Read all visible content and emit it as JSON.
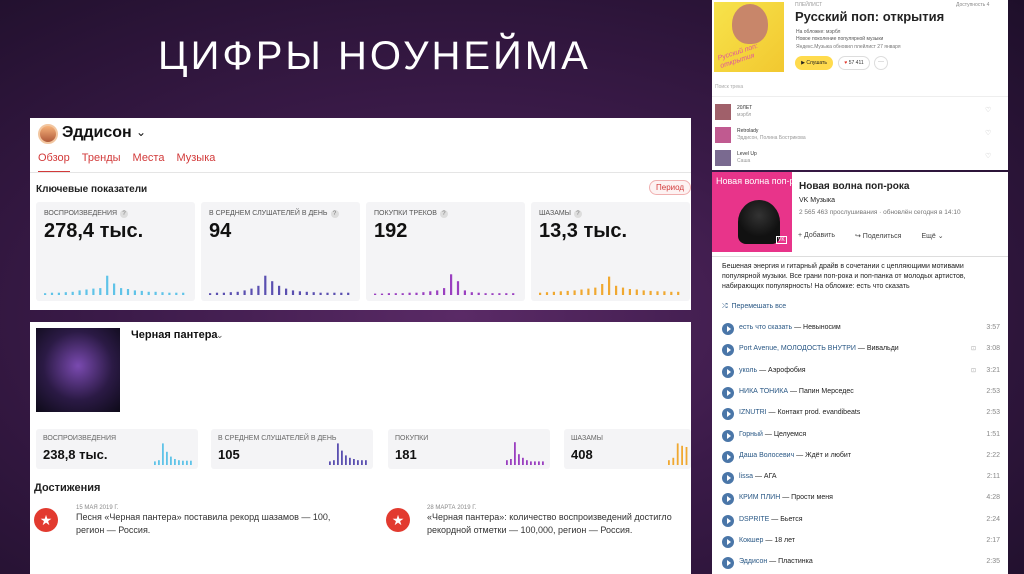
{
  "slide": {
    "title": "ЦИФРЫ НОУНЕЙМА"
  },
  "artist_card": {
    "name": "Эддисон",
    "tabs": [
      "Обзор",
      "Тренды",
      "Места",
      "Музыка"
    ],
    "active_tab": "Обзор",
    "section_title": "Ключевые показатели",
    "period_button": "Период",
    "stats": [
      {
        "label": "ВОСПРОИЗВЕДЕНИЯ",
        "value": "278,4 тыс.",
        "color": "#5fc3e8",
        "bars": [
          0.04,
          0.05,
          0.05,
          0.06,
          0.07,
          0.1,
          0.12,
          0.14,
          0.15,
          0.42,
          0.25,
          0.15,
          0.13,
          0.1,
          0.09,
          0.07,
          0.07,
          0.06,
          0.05,
          0.05,
          0.05
        ]
      },
      {
        "label": "В СРЕДНЕМ СЛУШАТЕЛЕЙ В ДЕНЬ",
        "value": "94",
        "color": "#5a4fb0",
        "bars": [
          0.04,
          0.05,
          0.05,
          0.06,
          0.07,
          0.1,
          0.14,
          0.2,
          0.42,
          0.3,
          0.2,
          0.14,
          0.1,
          0.08,
          0.07,
          0.06,
          0.05,
          0.05,
          0.05,
          0.05,
          0.05
        ]
      },
      {
        "label": "ПОКУПКИ ТРЕКОВ",
        "value": "192",
        "color": "#9a3fc0",
        "bars": [
          0.03,
          0.03,
          0.04,
          0.04,
          0.04,
          0.05,
          0.05,
          0.06,
          0.08,
          0.1,
          0.15,
          0.45,
          0.3,
          0.1,
          0.06,
          0.05,
          0.04,
          0.04,
          0.04,
          0.04,
          0.04
        ]
      },
      {
        "label": "ШАЗАМЫ",
        "value": "13,3 тыс.",
        "color": "#f0a830",
        "bars": [
          0.05,
          0.06,
          0.07,
          0.08,
          0.09,
          0.1,
          0.12,
          0.14,
          0.16,
          0.24,
          0.4,
          0.2,
          0.16,
          0.13,
          0.12,
          0.1,
          0.09,
          0.08,
          0.08,
          0.07,
          0.07
        ]
      }
    ]
  },
  "release_card": {
    "title": "Черная пантера",
    "stats": [
      {
        "label": "ВОСПРОИЗВЕДЕНИЯ",
        "value": "238,8 тыс.",
        "color": "#5fc3e8",
        "bars": [
          0.15,
          0.2,
          0.9,
          0.55,
          0.35,
          0.25,
          0.2,
          0.18,
          0.18,
          0.18
        ]
      },
      {
        "label": "В СРЕДНЕМ СЛУШАТЕЛЕЙ В ДЕНЬ",
        "value": "105",
        "color": "#5a4fb0",
        "bars": [
          0.15,
          0.2,
          0.9,
          0.6,
          0.4,
          0.3,
          0.25,
          0.2,
          0.2,
          0.2
        ]
      },
      {
        "label": "ПОКУПКИ",
        "value": "181",
        "color": "#9a3fc0",
        "bars": [
          0.2,
          0.25,
          0.95,
          0.45,
          0.3,
          0.2,
          0.15,
          0.15,
          0.15,
          0.15
        ]
      },
      {
        "label": "ШАЗАМЫ",
        "value": "408",
        "color": "#f0a830",
        "bars": [
          0.2,
          0.3,
          0.9,
          0.8,
          0.75
        ]
      }
    ],
    "achievements_title": "Достижения",
    "achievements": [
      {
        "date": "15 МАЯ 2019 Г.",
        "line1": "Песня «Черная пантера» поставила рекорд шазамов — 100,",
        "line2": "регион — Россия."
      },
      {
        "date": "28 МАРТА 2019 Г.",
        "line1": "«Черная пантера»: количество воспроизведений достигло",
        "line2": "рекордной отметки — 100,000, регион — Россия."
      }
    ]
  },
  "yandex_playlist": {
    "kicker": "ПЛЕЙЛИСТ",
    "download": "Доступность 4",
    "title": "Русский поп: открытия",
    "subtitle_lines": [
      "На обложке: мэрбл",
      "Новое поколение популярной музыки"
    ],
    "meta": "Яндекс.Музыка  обновил плейлист 27 января",
    "listen_button": "Слушать",
    "likes": "57 411",
    "more": "···",
    "search_placeholder": "Поиск трека",
    "cover_text": "Русский поп: открытия",
    "tracks": [
      {
        "title": "20ЛЕТ",
        "artist": "мэрбл"
      },
      {
        "title": "Retrolady",
        "artist": "Эддисон, Полина Бострикова"
      },
      {
        "title": "Level Up",
        "artist": "Саша"
      }
    ]
  },
  "vk_playlist": {
    "cover_text": "Новая волна поп-рока",
    "cover_badge": "VK",
    "title": "Новая волна поп-рока",
    "owner": "VK Музыка",
    "stats": "2 565 463 прослушивания  ·  обновлён сегодня в 14:10",
    "actions": [
      "+ Добавить",
      "Поделиться",
      "Ещё ⌄"
    ],
    "description": "Бешеная энергия и гитарный драйв в сочетании с цепляющими мотивами популярной музыки. Все грани поп-рока и поп-панка от молодых артистов, набирающих популярность! На обложке: есть что сказать",
    "shuffle_label": "Перемешать все",
    "tracks": [
      {
        "artist": "есть что сказать",
        "title": "Невыносим",
        "duration": "3:57",
        "dl": false
      },
      {
        "artist": "Port Avenue, МОЛОДОСТЬ ВНУТРИ",
        "title": "Вивальди",
        "duration": "3:08",
        "dl": true
      },
      {
        "artist": "уколь",
        "title": "Аэрофобия",
        "duration": "3:21",
        "dl": true
      },
      {
        "artist": "НИКА ТОНИКА",
        "title": "Папин Мерседес",
        "duration": "2:53",
        "dl": false
      },
      {
        "artist": "IZNUTRI",
        "title": "Контакт prod. evandibeats",
        "duration": "2:53",
        "dl": false
      },
      {
        "artist": "Горный",
        "title": "Целуемся",
        "duration": "1:51",
        "dl": false
      },
      {
        "artist": "Даша Волосевич",
        "title": "Ждёт и любит",
        "duration": "2:22",
        "dl": false
      },
      {
        "artist": "lissa",
        "title": "АГА",
        "duration": "2:11",
        "dl": false
      },
      {
        "artist": "КРИМ ПЛИН",
        "title": "Прости меня",
        "duration": "4:28",
        "dl": false
      },
      {
        "artist": "DSPRITE",
        "title": "Бьется",
        "duration": "2:24",
        "dl": false
      },
      {
        "artist": "Кокшер",
        "title": "18 лет",
        "duration": "2:17",
        "dl": false
      },
      {
        "artist": "Эддисон",
        "title": "Пластинка",
        "duration": "2:35",
        "dl": false
      }
    ]
  }
}
